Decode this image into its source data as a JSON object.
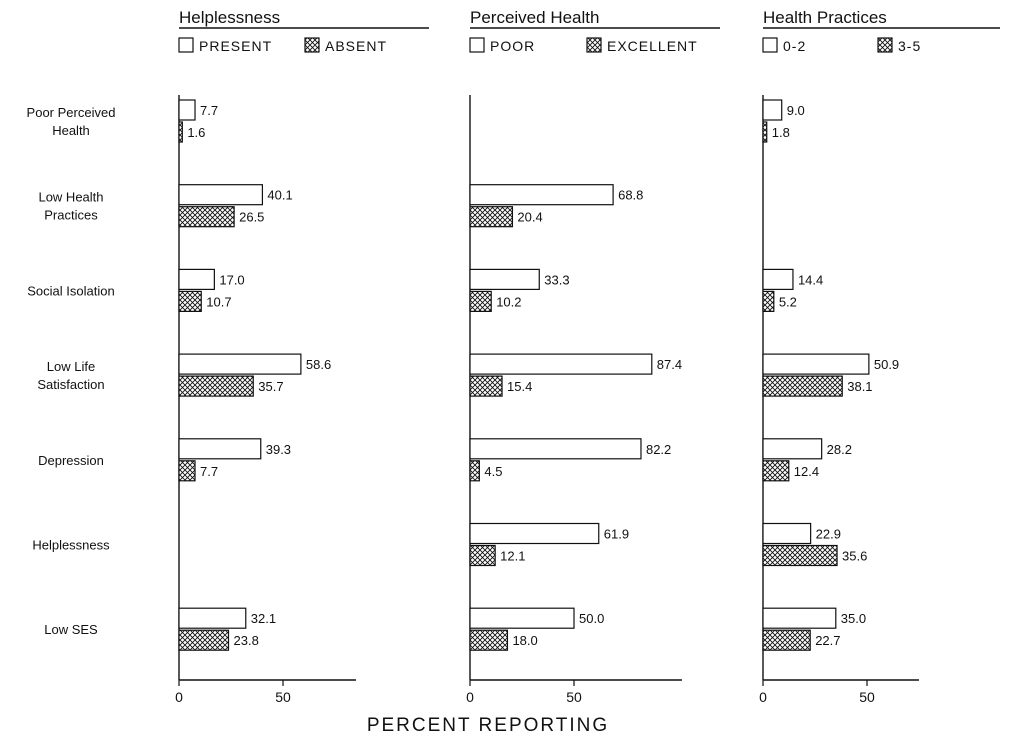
{
  "xlabel": "PERCENT REPORTING",
  "categories": [
    "Poor Perceived Health",
    "Low Health Practices",
    "Social Isolation",
    "Low Life Satisfaction",
    "Depression",
    "Helplessness",
    "Low SES"
  ],
  "category_label_lines": [
    [
      "Poor Perceived",
      "Health"
    ],
    [
      "Low Health",
      "Practices"
    ],
    [
      "Social Isolation"
    ],
    [
      "Low Life",
      "Satisfaction"
    ],
    [
      "Depression"
    ],
    [
      "Helplessness"
    ],
    [
      "Low SES"
    ]
  ],
  "colors": {
    "open_fill": "#ffffff",
    "stroke": "#111111",
    "hatch": "#111111"
  },
  "chart_data": [
    {
      "type": "bar",
      "orientation": "horizontal",
      "title": "Helplessness",
      "categories": [
        "Poor Perceived Health",
        "Low Health Practices",
        "Social Isolation",
        "Low Life Satisfaction",
        "Depression",
        "Helplessness",
        "Low SES"
      ],
      "series": [
        {
          "name": "PRESENT",
          "pattern": "open",
          "values": [
            7.7,
            40.1,
            17.0,
            58.6,
            39.3,
            null,
            32.1
          ],
          "labels": [
            "7.7",
            "40.1",
            "17.0",
            "58.6",
            "39.3",
            "",
            "32.1"
          ]
        },
        {
          "name": "ABSENT",
          "pattern": "crosshatch",
          "values": [
            1.6,
            26.5,
            10.7,
            35.7,
            7.7,
            null,
            23.8
          ],
          "labels": [
            "1.6",
            "26.5",
            "10.7",
            "35.7",
            "7.7",
            "",
            "23.8"
          ]
        }
      ],
      "xticks": [
        "0",
        "50"
      ],
      "xlim": [
        0,
        100
      ]
    },
    {
      "type": "bar",
      "orientation": "horizontal",
      "title": "Perceived Health",
      "categories": [
        "Poor Perceived Health",
        "Low Health Practices",
        "Social Isolation",
        "Low Life Satisfaction",
        "Depression",
        "Helplessness",
        "Low SES"
      ],
      "series": [
        {
          "name": "POOR",
          "pattern": "open",
          "values": [
            null,
            68.8,
            33.3,
            87.4,
            82.2,
            61.9,
            50.0
          ],
          "labels": [
            "",
            "68.8",
            "33.3",
            "87.4",
            "82.2",
            "61.9",
            "50.0"
          ]
        },
        {
          "name": "EXCELLENT",
          "pattern": "crosshatch",
          "values": [
            null,
            20.4,
            10.2,
            15.4,
            4.5,
            12.1,
            18.0
          ],
          "labels": [
            "",
            "20.4",
            "10.2",
            "15.4",
            "4.5",
            "12.1",
            "18.0"
          ]
        }
      ],
      "xticks": [
        "0",
        "50"
      ],
      "xlim": [
        0,
        100
      ]
    },
    {
      "type": "bar",
      "orientation": "horizontal",
      "title": "Health Practices",
      "categories": [
        "Poor Perceived Health",
        "Low Health Practices",
        "Social Isolation",
        "Low Life Satisfaction",
        "Depression",
        "Helplessness",
        "Low SES"
      ],
      "series": [
        {
          "name": "0-2",
          "pattern": "open",
          "values": [
            9.0,
            null,
            14.4,
            50.9,
            28.2,
            22.9,
            35.0
          ],
          "labels": [
            "9.0",
            "",
            "14.4",
            "50.9",
            "28.2",
            "22.9",
            "35.0"
          ]
        },
        {
          "name": "3-5",
          "pattern": "crosshatch",
          "values": [
            1.8,
            null,
            5.2,
            38.1,
            12.4,
            35.6,
            22.7
          ],
          "labels": [
            "1.8",
            "",
            "5.2",
            "38.1",
            "12.4",
            "35.6",
            "22.7"
          ]
        }
      ],
      "xticks": [
        "0",
        "50"
      ],
      "xlim": [
        0,
        100
      ]
    }
  ]
}
